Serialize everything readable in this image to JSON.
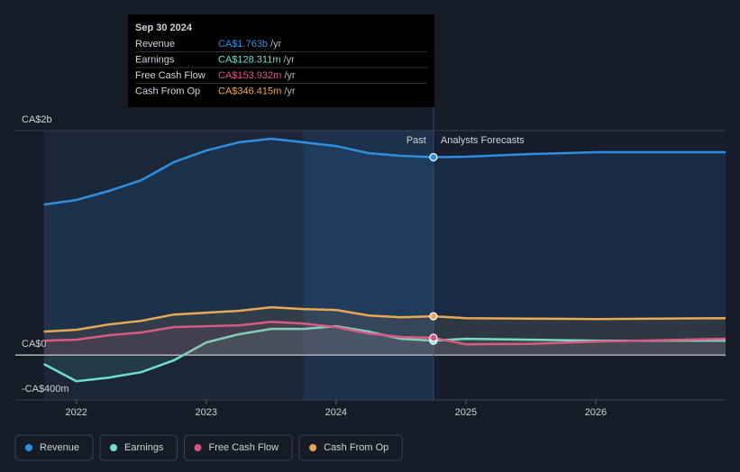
{
  "chart_data": {
    "type": "line",
    "x": [
      2021.75,
      2022.0,
      2022.25,
      2022.5,
      2022.75,
      2023.0,
      2023.25,
      2023.5,
      2023.75,
      2024.0,
      2024.25,
      2024.5,
      2024.75,
      2025.0,
      2025.5,
      2026.0,
      2027.0
    ],
    "xlim": [
      2021.53,
      2027.0
    ],
    "xticks": [
      2022,
      2023,
      2024,
      2025,
      2026
    ],
    "ylim": [
      -400,
      2000
    ],
    "yticks": [
      {
        "value": -400,
        "label": "-CA$400m"
      },
      {
        "value": 0,
        "label": "CA$0"
      },
      {
        "value": 2000,
        "label": "CA$2b"
      }
    ],
    "divider": {
      "x": 2024.75,
      "left": "Past",
      "right": "Analysts Forecasts"
    },
    "series": [
      {
        "name": "Revenue",
        "color": "#2e8fe0",
        "values": [
          1341,
          1382,
          1462,
          1558,
          1719,
          1823,
          1896,
          1928,
          1896,
          1863,
          1799,
          1775,
          1763,
          1767,
          1791,
          1807,
          1807
        ]
      },
      {
        "name": "Earnings",
        "color": "#6fe0cf",
        "values": [
          -80,
          -233,
          -201,
          -153,
          -48,
          112,
          185,
          233,
          233,
          257,
          209,
          145,
          128,
          145,
          137,
          128,
          128
        ]
      },
      {
        "name": "Free Cash Flow",
        "color": "#d9528a",
        "values": [
          128,
          137,
          177,
          201,
          249,
          257,
          265,
          297,
          281,
          249,
          193,
          161,
          154,
          96,
          100,
          120,
          145
        ]
      },
      {
        "name": "Cash From Op",
        "color": "#e8a854",
        "values": [
          209,
          225,
          273,
          305,
          361,
          378,
          394,
          426,
          410,
          402,
          353,
          337,
          346,
          329,
          325,
          321,
          329
        ]
      }
    ],
    "tooltip": {
      "date": "Sep 30 2024",
      "unit": "/yr",
      "rows": [
        {
          "label": "Revenue",
          "value": "CA$1.763b"
        },
        {
          "label": "Earnings",
          "value": "CA$128.311m"
        },
        {
          "label": "Free Cash Flow",
          "value": "CA$153.932m"
        },
        {
          "label": "Cash From Op",
          "value": "CA$346.415m"
        }
      ]
    }
  }
}
